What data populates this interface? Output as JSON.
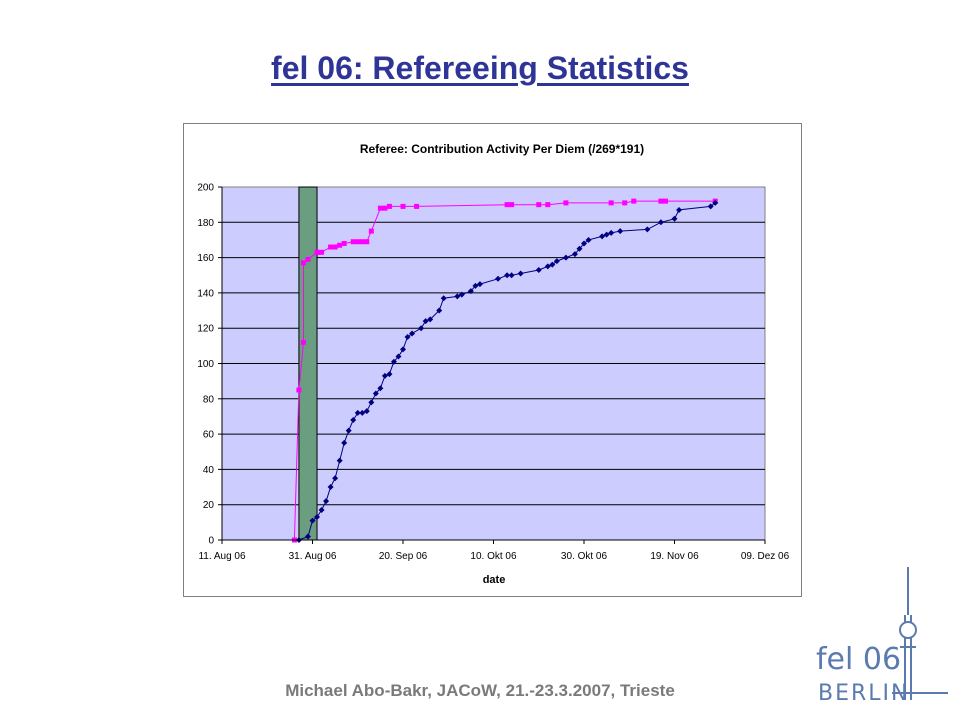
{
  "slide": {
    "title": "fel 06: Refereeing Statistics",
    "footer": "Michael Abo-Bakr, JACoW, 21.-23.3.2007, Trieste"
  },
  "logo": {
    "line1": "fel 06",
    "line2": "BERLIN"
  },
  "chart_data": {
    "type": "line",
    "title": "Referee: Contribution Activity Per Diem (/269*191)",
    "xlabel": "date",
    "ylabel": "",
    "x_ticks": [
      "11. Aug 06",
      "31. Aug 06",
      "20. Sep 06",
      "10. Okt 06",
      "30. Okt 06",
      "19. Nov 06",
      "09. Dez 06"
    ],
    "ylim": [
      0,
      200
    ],
    "y_ticks": [
      0,
      20,
      40,
      60,
      80,
      100,
      120,
      140,
      160,
      180,
      200
    ],
    "grid": "horizontal",
    "plot_background": "#ccccff",
    "highlight_band": {
      "from": "2006-08-28",
      "to": "2006-09-01",
      "color": "#6b9e80"
    },
    "series": [
      {
        "color": "#ff00ff",
        "marker": "square",
        "points": [
          [
            "2006-08-27",
            0
          ],
          [
            "2006-08-28",
            85
          ],
          [
            "2006-08-29",
            112
          ],
          [
            "2006-08-29",
            157
          ],
          [
            "2006-08-30",
            159
          ],
          [
            "2006-09-01",
            163
          ],
          [
            "2006-09-01",
            163
          ],
          [
            "2006-09-02",
            163
          ],
          [
            "2006-09-04",
            166
          ],
          [
            "2006-09-05",
            166
          ],
          [
            "2006-09-06",
            167
          ],
          [
            "2006-09-07",
            168
          ],
          [
            "2006-09-09",
            169
          ],
          [
            "2006-09-10",
            169
          ],
          [
            "2006-09-11",
            169
          ],
          [
            "2006-09-12",
            169
          ],
          [
            "2006-09-13",
            175
          ],
          [
            "2006-09-15",
            188
          ],
          [
            "2006-09-16",
            188
          ],
          [
            "2006-09-17",
            189
          ],
          [
            "2006-09-20",
            189
          ],
          [
            "2006-09-23",
            189
          ],
          [
            "2006-10-13",
            190
          ],
          [
            "2006-10-14",
            190
          ],
          [
            "2006-10-20",
            190
          ],
          [
            "2006-10-22",
            190
          ],
          [
            "2006-10-26",
            191
          ],
          [
            "2006-11-05",
            191
          ],
          [
            "2006-11-08",
            191
          ],
          [
            "2006-11-10",
            192
          ],
          [
            "2006-11-16",
            192
          ],
          [
            "2006-11-17",
            192
          ],
          [
            "2006-11-28",
            192
          ]
        ]
      },
      {
        "color": "#000080",
        "marker": "diamond",
        "points": [
          [
            "2006-08-28",
            0
          ],
          [
            "2006-08-30",
            2
          ],
          [
            "2006-08-31",
            11
          ],
          [
            "2006-09-01",
            13
          ],
          [
            "2006-09-02",
            17
          ],
          [
            "2006-09-03",
            22
          ],
          [
            "2006-09-04",
            30
          ],
          [
            "2006-09-05",
            35
          ],
          [
            "2006-09-06",
            45
          ],
          [
            "2006-09-07",
            55
          ],
          [
            "2006-09-08",
            62
          ],
          [
            "2006-09-09",
            68
          ],
          [
            "2006-09-10",
            72
          ],
          [
            "2006-09-11",
            72
          ],
          [
            "2006-09-12",
            73
          ],
          [
            "2006-09-13",
            78
          ],
          [
            "2006-09-14",
            83
          ],
          [
            "2006-09-15",
            86
          ],
          [
            "2006-09-16",
            93
          ],
          [
            "2006-09-17",
            94
          ],
          [
            "2006-09-18",
            101
          ],
          [
            "2006-09-19",
            104
          ],
          [
            "2006-09-20",
            108
          ],
          [
            "2006-09-21",
            115
          ],
          [
            "2006-09-22",
            117
          ],
          [
            "2006-09-24",
            120
          ],
          [
            "2006-09-25",
            124
          ],
          [
            "2006-09-26",
            125
          ],
          [
            "2006-09-28",
            130
          ],
          [
            "2006-09-29",
            137
          ],
          [
            "2006-10-02",
            138
          ],
          [
            "2006-10-03",
            139
          ],
          [
            "2006-10-05",
            141
          ],
          [
            "2006-10-06",
            144
          ],
          [
            "2006-10-07",
            145
          ],
          [
            "2006-10-11",
            148
          ],
          [
            "2006-10-13",
            150
          ],
          [
            "2006-10-14",
            150
          ],
          [
            "2006-10-16",
            151
          ],
          [
            "2006-10-20",
            153
          ],
          [
            "2006-10-22",
            155
          ],
          [
            "2006-10-23",
            156
          ],
          [
            "2006-10-24",
            158
          ],
          [
            "2006-10-26",
            160
          ],
          [
            "2006-10-28",
            162
          ],
          [
            "2006-10-29",
            165
          ],
          [
            "2006-10-30",
            168
          ],
          [
            "2006-10-31",
            170
          ],
          [
            "2006-11-03",
            172
          ],
          [
            "2006-11-04",
            173
          ],
          [
            "2006-11-05",
            174
          ],
          [
            "2006-11-07",
            175
          ],
          [
            "2006-11-13",
            176
          ],
          [
            "2006-11-16",
            180
          ],
          [
            "2006-11-19",
            182
          ],
          [
            "2006-11-20",
            187
          ],
          [
            "2006-11-27",
            189
          ],
          [
            "2006-11-28",
            191
          ]
        ]
      }
    ]
  }
}
